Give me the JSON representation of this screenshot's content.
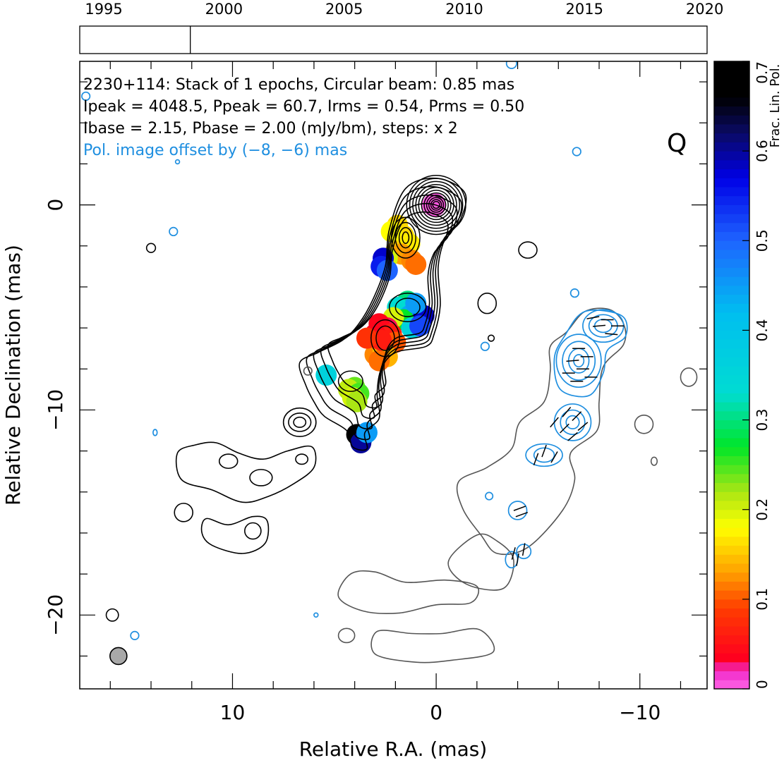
{
  "chart_data": {
    "type": "contour",
    "source": "2230+114",
    "info_lines": [
      "2230+114: Stack of 1 epochs, Circular beam: 0.85 mas",
      "Ipeak = 4048.5, Ppeak = 60.7, Irms = 0.54, Prms = 0.50",
      "Ibase = 2.15, Pbase = 2.00 (mJy/bm), steps: x 2"
    ],
    "offset_note": "Pol. image offset by (−8, −6) mas",
    "quasar_label": "Q",
    "xlabel": "Relative R.A. (mas)",
    "ylabel": "Relative Declination (mas)",
    "x_range": [
      17.5,
      -13.3
    ],
    "y_range": [
      -23.6,
      7.0
    ],
    "x_ticks": [
      {
        "value": 10,
        "label": "10"
      },
      {
        "value": 0,
        "label": "0"
      },
      {
        "value": -10,
        "label": "−10"
      }
    ],
    "y_ticks": [
      {
        "value": 0,
        "label": "0"
      },
      {
        "value": -10,
        "label": "−10"
      },
      {
        "value": -20,
        "label": "−20"
      }
    ],
    "timeline": {
      "range": [
        1994.0,
        2020.1
      ],
      "ticks": [
        {
          "value": 1995,
          "label": "1995"
        },
        {
          "value": 2000,
          "label": "2000"
        },
        {
          "value": 2005,
          "label": "2005"
        },
        {
          "value": 2010,
          "label": "2010"
        },
        {
          "value": 2015,
          "label": "2015"
        },
        {
          "value": 2020,
          "label": "2020"
        }
      ],
      "epochs": [
        1998.6
      ]
    },
    "colorbar": {
      "label": "Frac. Lin. Pol.",
      "range": [
        0,
        0.7
      ],
      "ticks": [
        {
          "value": 0,
          "label": "0"
        },
        {
          "value": 0.1,
          "label": "0.1"
        },
        {
          "value": 0.2,
          "label": "0.2"
        },
        {
          "value": 0.3,
          "label": "0.3"
        },
        {
          "value": 0.4,
          "label": "0.4"
        },
        {
          "value": 0.5,
          "label": "0.5"
        },
        {
          "value": 0.6,
          "label": "0.6"
        },
        {
          "value": 0.7,
          "label": "0.7"
        }
      ]
    },
    "beam": {
      "x": 15.6,
      "y": -22.0,
      "diameter_mas": 0.85
    },
    "colors": {
      "total_intensity_contours": "#000000",
      "pol_total_contours": "#555555",
      "pol_intensity_contours": "#1f8fe0",
      "offset_note": "#1f8fe0",
      "evpa_ticks": "#000000"
    }
  }
}
